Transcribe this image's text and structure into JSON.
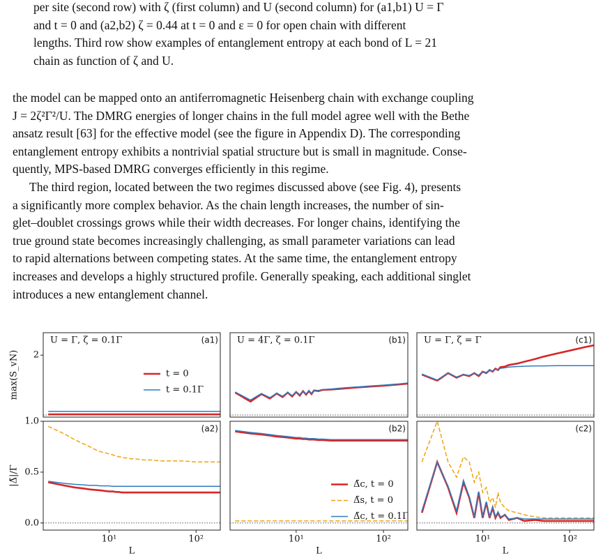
{
  "text": {
    "caption": [
      "per site (second row) with ζ (first column) and U (second column) for (a1,b1) U = Γ",
      "and t = 0 and (a2,b2) ζ = 0.44 at t = 0 and ε = 0 for open chain with different",
      "lengths. Third row show examples of entanglement entropy at each bond of L = 21",
      "chain as function of ζ and U."
    ],
    "paragraph1": [
      "the model can be mapped onto an antiferromagnetic Heisenberg chain with exchange coupling",
      "J = 2ζ²Γ²/U. The DMRG energies of longer chains in the full model agree well with the Bethe",
      "ansatz result [63] for the effective model (see the figure in Appendix D). The corresponding",
      "entanglement entropy exhibits a nontrivial spatial structure but is small in magnitude. Conse-",
      "quently, MPS-based DMRG converges efficiently in this regime."
    ],
    "paragraph2": [
      "The third region, located between the two regimes discussed above (see Fig. 4), presents",
      "a significantly more complex behavior.  As the chain length increases, the number of sin-",
      "glet–doublet crossings grows while their width decreases. For longer chains, identifying the",
      "true ground state becomes increasingly challenging, as small parameter variations can lead",
      "to rapid alternations between competing states. At the same time, the entanglement entropy",
      "increases and develops a highly structured profile. Generally speaking, each additional singlet",
      "introduces a new entanglement channel."
    ]
  },
  "chart_data": [
    {
      "type": "line",
      "label": "(a1)",
      "annotation": "U = Γ,  ζ = 0.1Γ",
      "ylabel": "max(S_vN)",
      "log_x": true,
      "reference_line": 0,
      "x": [
        2,
        3,
        4,
        5,
        6,
        7,
        8,
        9,
        10,
        11,
        12,
        13,
        14,
        15,
        16,
        18,
        20,
        25,
        30,
        40,
        50,
        70,
        100,
        150,
        190
      ],
      "xlim": [
        1.75,
        190
      ],
      "ylim": [
        -0.07,
        2.75
      ],
      "yticks": [
        2
      ],
      "legend": "center right",
      "series": [
        {
          "name": "t = 0",
          "color": "#d62728",
          "values": [
            0.02,
            0.02,
            0.02,
            0.02,
            0.02,
            0.02,
            0.02,
            0.02,
            0.02,
            0.02,
            0.02,
            0.02,
            0.02,
            0.02,
            0.02,
            0.02,
            0.02,
            0.02,
            0.02,
            0.02,
            0.02,
            0.02,
            0.02,
            0.02,
            0.02
          ]
        },
        {
          "name": "t = 0.1Γ",
          "color": "#2f7bbf",
          "values": [
            0.12,
            0.12,
            0.12,
            0.12,
            0.12,
            0.12,
            0.12,
            0.12,
            0.12,
            0.12,
            0.12,
            0.12,
            0.12,
            0.12,
            0.12,
            0.12,
            0.12,
            0.12,
            0.12,
            0.12,
            0.12,
            0.12,
            0.12,
            0.12,
            0.12
          ]
        }
      ]
    },
    {
      "type": "line",
      "label": "(b1)",
      "annotation": "U = 4Γ,  ζ = 0.1Γ",
      "log_x": true,
      "reference_line": 0,
      "x": [
        2,
        3,
        4,
        5,
        6,
        7,
        8,
        9,
        10,
        11,
        12,
        13,
        14,
        15,
        16,
        18,
        20,
        25,
        30,
        40,
        50,
        70,
        100,
        150,
        190
      ],
      "xlim": [
        1.75,
        190
      ],
      "ylim": [
        -0.07,
        2.75
      ],
      "series": [
        {
          "color": "#d62728",
          "values": [
            0.75,
            0.45,
            0.7,
            0.55,
            0.72,
            0.6,
            0.75,
            0.62,
            0.77,
            0.65,
            0.8,
            0.68,
            0.8,
            0.7,
            0.82,
            0.8,
            0.84,
            0.85,
            0.87,
            0.9,
            0.92,
            0.95,
            0.98,
            1.02,
            1.05
          ]
        },
        {
          "color": "#2f7bbf",
          "values": [
            0.77,
            0.5,
            0.72,
            0.58,
            0.73,
            0.63,
            0.76,
            0.65,
            0.78,
            0.68,
            0.8,
            0.7,
            0.82,
            0.72,
            0.83,
            0.82,
            0.85,
            0.87,
            0.89,
            0.92,
            0.94,
            0.97,
            1.0,
            1.04,
            1.07
          ]
        }
      ]
    },
    {
      "type": "line",
      "label": "(c1)",
      "annotation": "U = Γ,  ζ = Γ",
      "log_x": true,
      "reference_line": 0,
      "x": [
        2,
        3,
        4,
        5,
        6,
        7,
        8,
        9,
        10,
        11,
        12,
        13,
        14,
        15,
        16,
        18,
        20,
        25,
        30,
        40,
        50,
        70,
        100,
        150,
        190
      ],
      "xlim": [
        1.75,
        190
      ],
      "ylim": [
        -0.07,
        2.75
      ],
      "series": [
        {
          "color": "#d62728",
          "values": [
            1.35,
            1.15,
            1.4,
            1.25,
            1.35,
            1.3,
            1.4,
            1.3,
            1.45,
            1.4,
            1.5,
            1.45,
            1.55,
            1.5,
            1.6,
            1.62,
            1.67,
            1.72,
            1.78,
            1.87,
            1.95,
            2.05,
            2.15,
            2.27,
            2.33
          ]
        },
        {
          "color": "#2f7bbf",
          "values": [
            1.37,
            1.17,
            1.4,
            1.27,
            1.35,
            1.32,
            1.4,
            1.33,
            1.45,
            1.42,
            1.5,
            1.46,
            1.53,
            1.5,
            1.56,
            1.58,
            1.6,
            1.62,
            1.63,
            1.64,
            1.64,
            1.65,
            1.65,
            1.65,
            1.65
          ]
        }
      ]
    },
    {
      "type": "line",
      "label": "(a2)",
      "ylabel": "|Δ̃|/Γ",
      "xlabel": "L",
      "log_x": true,
      "reference_line": 0,
      "x": [
        2,
        3,
        4,
        5,
        6,
        7,
        8,
        9,
        10,
        11,
        12,
        13,
        14,
        15,
        16,
        18,
        20,
        25,
        30,
        40,
        50,
        70,
        100,
        150,
        190
      ],
      "xlim": [
        1.75,
        190
      ],
      "ylim": [
        -0.07,
        1.0
      ],
      "yticks": [
        {
          "value": 0,
          "label": "0.0"
        },
        {
          "value": 0.5,
          "label": "0.5"
        },
        {
          "value": 1,
          "label": "1.0"
        }
      ],
      "xticks": [
        {
          "value": 10,
          "label": "10¹"
        },
        {
          "value": 100,
          "label": "10²"
        }
      ],
      "series": [
        {
          "color": "#d62728",
          "values": [
            0.4,
            0.37,
            0.35,
            0.34,
            0.33,
            0.325,
            0.32,
            0.315,
            0.31,
            0.31,
            0.305,
            0.305,
            0.3,
            0.3,
            0.3,
            0.3,
            0.3,
            0.3,
            0.3,
            0.3,
            0.3,
            0.3,
            0.3,
            0.3,
            0.3
          ]
        },
        {
          "color": "#f0a30a",
          "dash": true,
          "values": [
            0.95,
            0.88,
            0.82,
            0.78,
            0.75,
            0.72,
            0.7,
            0.69,
            0.68,
            0.67,
            0.66,
            0.65,
            0.65,
            0.64,
            0.64,
            0.63,
            0.63,
            0.62,
            0.62,
            0.61,
            0.61,
            0.61,
            0.6,
            0.6,
            0.6
          ]
        },
        {
          "color": "#2f7bbf",
          "values": [
            0.41,
            0.39,
            0.38,
            0.375,
            0.37,
            0.37,
            0.365,
            0.365,
            0.365,
            0.36,
            0.36,
            0.36,
            0.36,
            0.36,
            0.36,
            0.36,
            0.36,
            0.36,
            0.36,
            0.36,
            0.36,
            0.36,
            0.36,
            0.36,
            0.36
          ]
        }
      ]
    },
    {
      "type": "line",
      "label": "(b2)",
      "xlabel": "L",
      "log_x": true,
      "reference_line": 0,
      "x": [
        2,
        3,
        4,
        5,
        6,
        7,
        8,
        9,
        10,
        11,
        12,
        13,
        14,
        15,
        16,
        18,
        20,
        25,
        30,
        40,
        50,
        70,
        100,
        150,
        190
      ],
      "xlim": [
        1.75,
        190
      ],
      "ylim": [
        -0.07,
        1.0
      ],
      "legend": "lower right",
      "xticks": [
        {
          "value": 10,
          "label": "10¹"
        },
        {
          "value": 100,
          "label": "10²"
        }
      ],
      "series": [
        {
          "name": "Δ̃c, t = 0",
          "color": "#d62728",
          "values": [
            0.9,
            0.88,
            0.87,
            0.86,
            0.85,
            0.845,
            0.84,
            0.835,
            0.83,
            0.83,
            0.825,
            0.825,
            0.82,
            0.82,
            0.82,
            0.815,
            0.815,
            0.81,
            0.81,
            0.81,
            0.81,
            0.81,
            0.81,
            0.81,
            0.81
          ]
        },
        {
          "name": "Δ̃s, t = 0",
          "color": "#f0a30a",
          "dash": true,
          "values": [
            0.02,
            0.02,
            0.02,
            0.02,
            0.02,
            0.02,
            0.02,
            0.02,
            0.02,
            0.02,
            0.02,
            0.02,
            0.02,
            0.02,
            0.02,
            0.02,
            0.02,
            0.02,
            0.02,
            0.02,
            0.02,
            0.02,
            0.02,
            0.02,
            0.02
          ]
        },
        {
          "name": "Δ̃c, t = 0.1Γ",
          "color": "#2f7bbf",
          "values": [
            0.91,
            0.89,
            0.88,
            0.87,
            0.86,
            0.855,
            0.85,
            0.845,
            0.84,
            0.84,
            0.835,
            0.835,
            0.83,
            0.83,
            0.83,
            0.825,
            0.825,
            0.82,
            0.82,
            0.82,
            0.82,
            0.82,
            0.82,
            0.82,
            0.82
          ]
        }
      ]
    },
    {
      "type": "line",
      "label": "(c2)",
      "xlabel": "L",
      "log_x": true,
      "reference_line": 0,
      "x": [
        2,
        3,
        4,
        5,
        6,
        7,
        8,
        9,
        10,
        11,
        12,
        13,
        14,
        15,
        16,
        18,
        20,
        25,
        30,
        40,
        50,
        70,
        100,
        150,
        190
      ],
      "xlim": [
        1.75,
        190
      ],
      "ylim": [
        -0.07,
        1.0
      ],
      "xticks": [
        {
          "value": 10,
          "label": "10¹"
        },
        {
          "value": 100,
          "label": "10²"
        }
      ],
      "series": [
        {
          "color": "#d62728",
          "values": [
            0.1,
            0.6,
            0.35,
            0.1,
            0.4,
            0.25,
            0.05,
            0.3,
            0.05,
            0.2,
            0.05,
            0.15,
            0.05,
            0.1,
            0.05,
            0.08,
            0.03,
            0.05,
            0.02,
            0.03,
            0.02,
            0.02,
            0.02,
            0.02,
            0.02
          ]
        },
        {
          "color": "#f0a30a",
          "dash": true,
          "values": [
            0.6,
            1.0,
            0.6,
            0.45,
            0.65,
            0.6,
            0.4,
            0.5,
            0.3,
            0.35,
            0.2,
            0.25,
            0.15,
            0.3,
            0.2,
            0.15,
            0.12,
            0.1,
            0.08,
            0.06,
            0.05,
            0.05,
            0.05,
            0.05,
            0.05
          ]
        },
        {
          "color": "#2f7bbf",
          "values": [
            0.12,
            0.6,
            0.36,
            0.12,
            0.42,
            0.26,
            0.06,
            0.31,
            0.06,
            0.21,
            0.06,
            0.16,
            0.06,
            0.11,
            0.06,
            0.08,
            0.04,
            0.05,
            0.04,
            0.04,
            0.04,
            0.04,
            0.04,
            0.04,
            0.04
          ]
        }
      ]
    }
  ]
}
